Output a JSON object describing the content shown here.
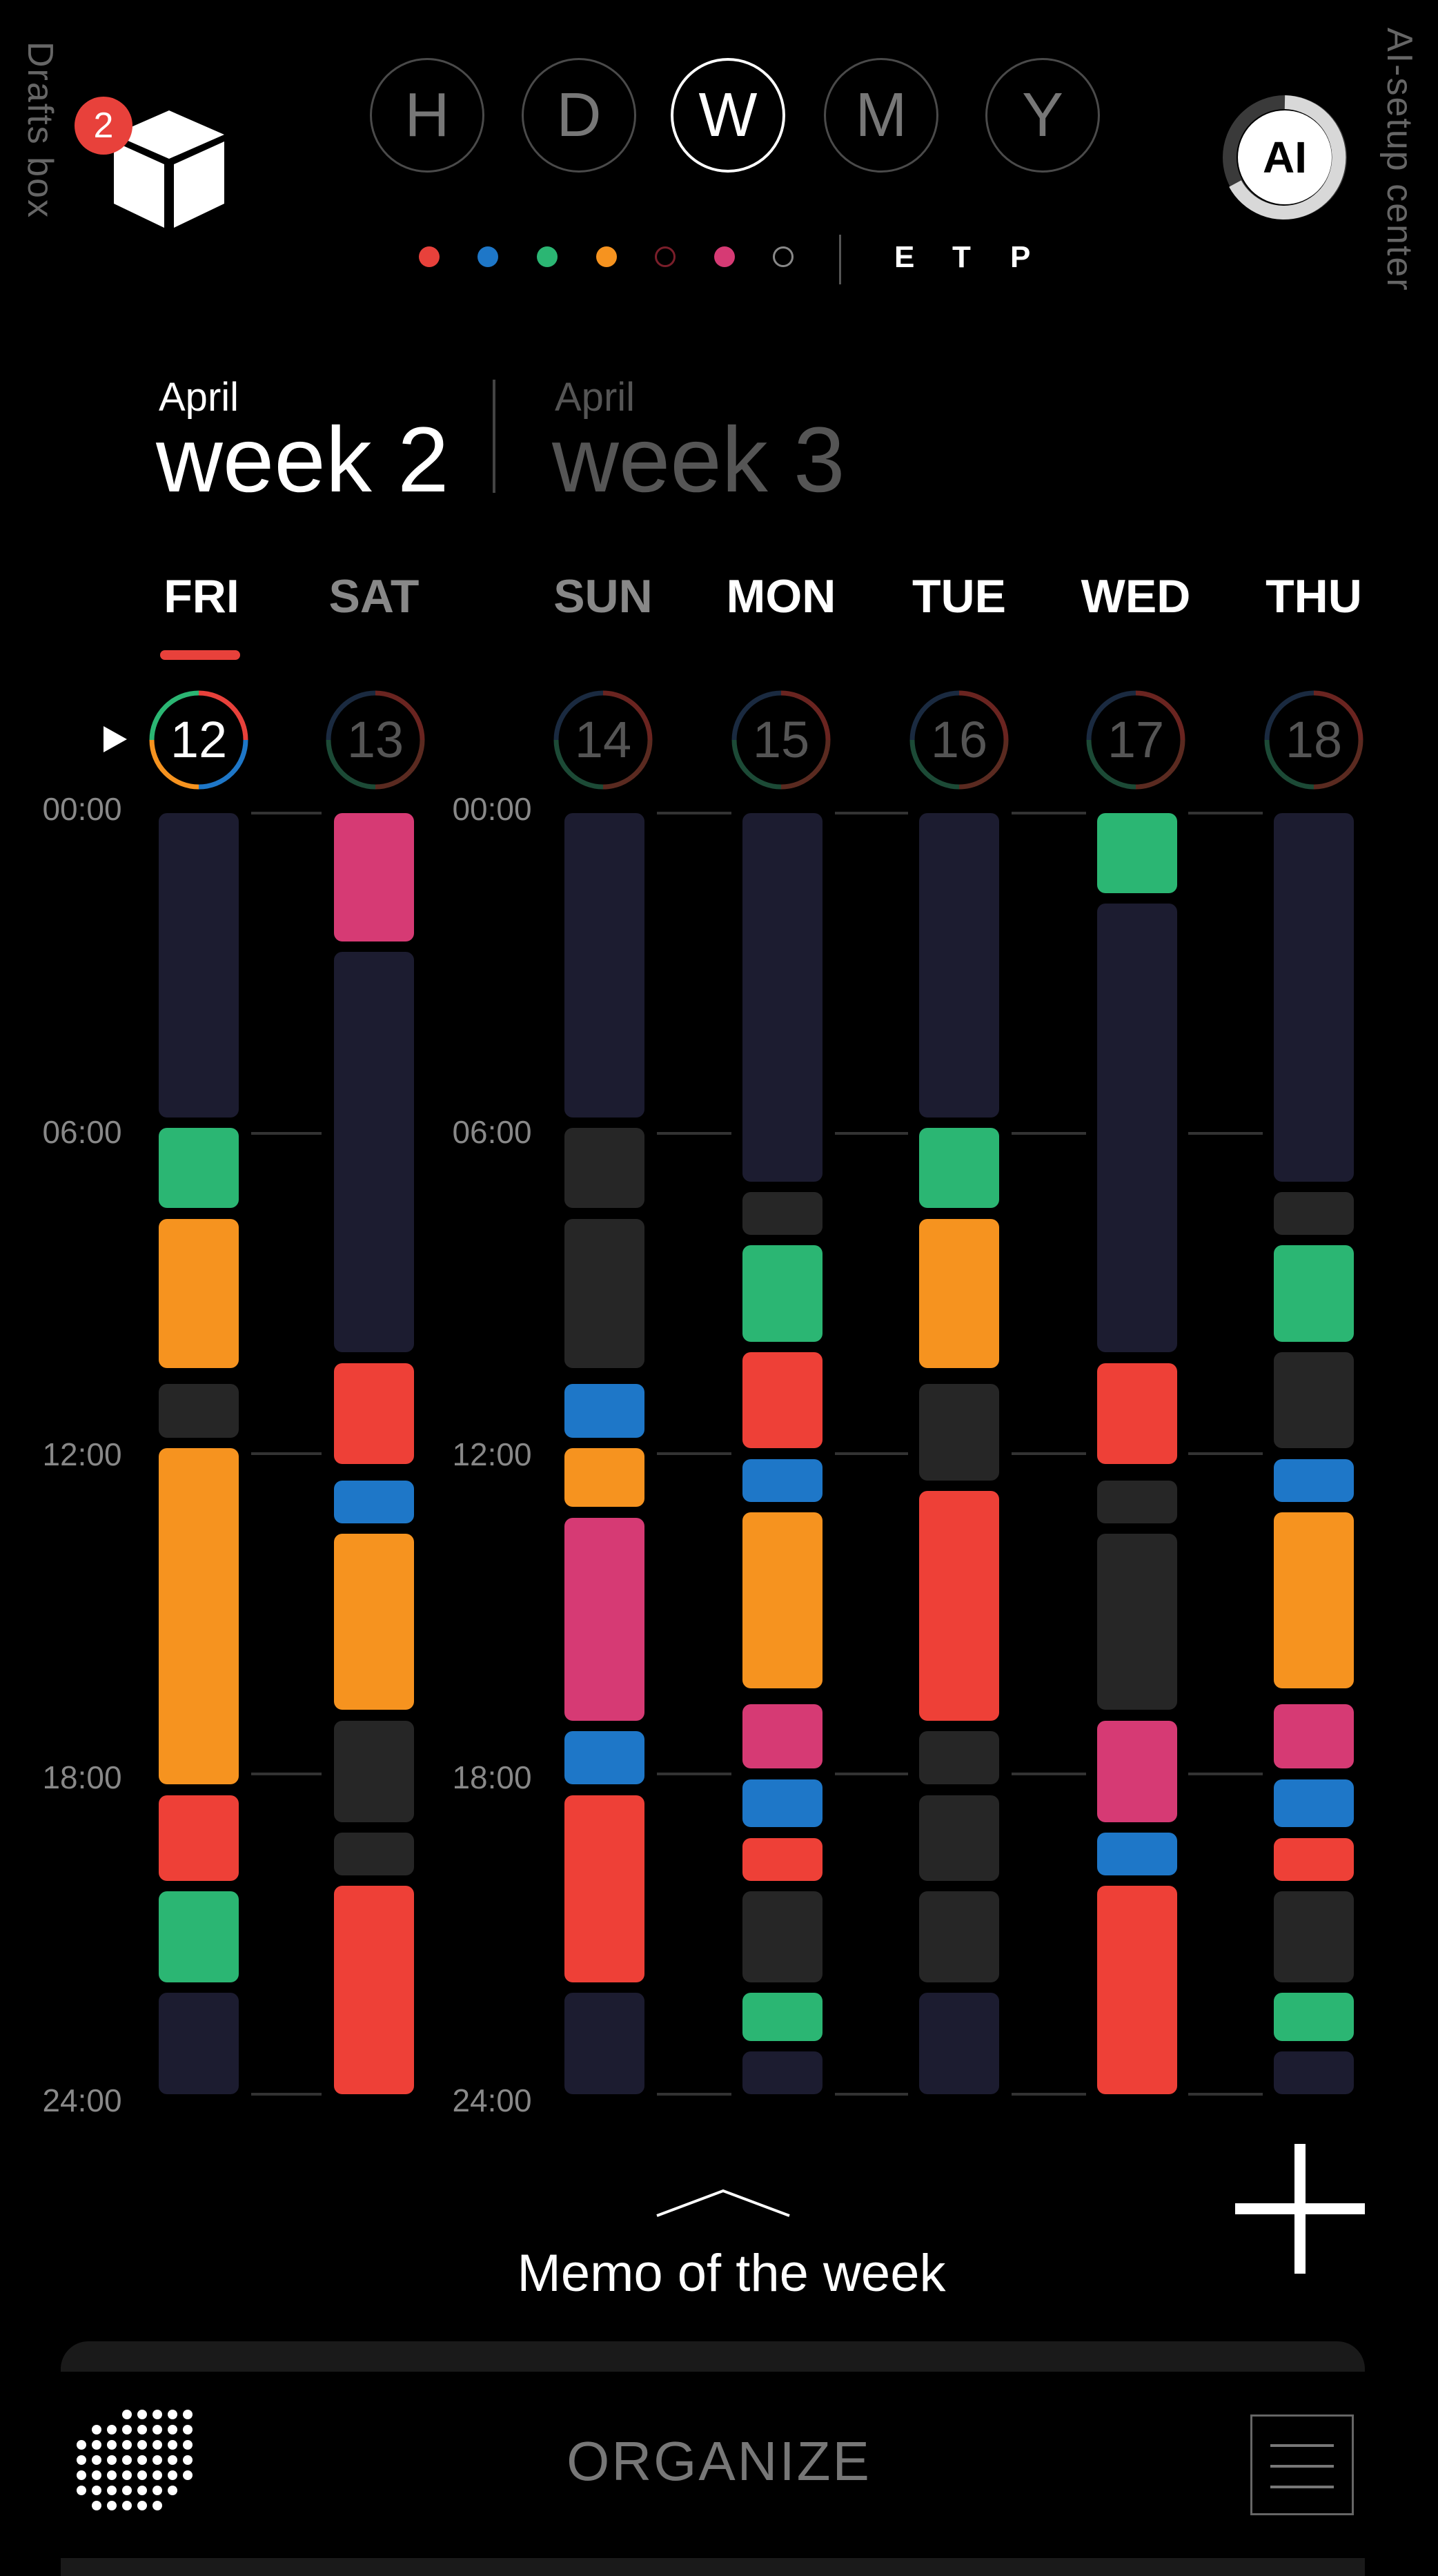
{
  "drafts": {
    "label": "Drafts box",
    "badge": "2"
  },
  "ai_center": {
    "label": "AI-setup center",
    "button": "AI"
  },
  "view_modes": [
    "H",
    "D",
    "W",
    "M",
    "Y"
  ],
  "active_view": "W",
  "color_filters": [
    "#e8413b",
    "#1e77c8",
    "#2bb673",
    "#f6931f",
    "#7a1e2a",
    "#d63a74",
    "#888888"
  ],
  "etp": [
    "E",
    "T",
    "P"
  ],
  "weeks": [
    {
      "month": "April",
      "label": "week 2"
    },
    {
      "month": "April",
      "label": "week 3"
    }
  ],
  "time_labels": [
    "00:00",
    "06:00",
    "12:00",
    "18:00",
    "24:00"
  ],
  "days": [
    {
      "name": "FRI",
      "num": "12"
    },
    {
      "name": "SAT",
      "num": "13"
    },
    {
      "name": "SUN",
      "num": "14"
    },
    {
      "name": "MON",
      "num": "15"
    },
    {
      "name": "TUE",
      "num": "16"
    },
    {
      "name": "WED",
      "num": "17"
    },
    {
      "name": "THU",
      "num": "18"
    }
  ],
  "colors": {
    "navy": "#1c1c30",
    "gray": "#262626",
    "green": "#2bb673",
    "orange": "#f6931f",
    "red": "#ee4037",
    "blue": "#1e77c8",
    "pink": "#d63a74"
  },
  "schedule": [
    [
      [
        0,
        5.7,
        "navy"
      ],
      [
        5.9,
        7.4,
        "green"
      ],
      [
        7.6,
        10.4,
        "orange"
      ],
      [
        10.7,
        11.7,
        "gray"
      ],
      [
        11.9,
        18.2,
        "orange"
      ],
      [
        18.4,
        20.0,
        "red"
      ],
      [
        20.2,
        21.9,
        "green"
      ],
      [
        22.1,
        24,
        "navy"
      ]
    ],
    [
      [
        0,
        2.4,
        "pink"
      ],
      [
        2.6,
        10.1,
        "navy"
      ],
      [
        10.3,
        12.2,
        "red"
      ],
      [
        12.5,
        13.3,
        "blue"
      ],
      [
        13.5,
        16.8,
        "orange"
      ],
      [
        17.0,
        18.9,
        "gray"
      ],
      [
        19.1,
        19.9,
        "gray"
      ],
      [
        20.1,
        24,
        "red"
      ]
    ],
    [
      [
        0,
        5.7,
        "navy"
      ],
      [
        5.9,
        7.4,
        "gray"
      ],
      [
        7.6,
        10.4,
        "gray"
      ],
      [
        10.7,
        11.7,
        "blue"
      ],
      [
        11.9,
        13.0,
        "orange"
      ],
      [
        13.2,
        17.0,
        "pink"
      ],
      [
        17.2,
        18.2,
        "blue"
      ],
      [
        18.4,
        21.9,
        "red"
      ],
      [
        22.1,
        24,
        "navy"
      ]
    ],
    [
      [
        0,
        6.9,
        "navy"
      ],
      [
        7.1,
        7.9,
        "gray"
      ],
      [
        8.1,
        9.9,
        "green"
      ],
      [
        10.1,
        11.9,
        "red"
      ],
      [
        12.1,
        12.9,
        "blue"
      ],
      [
        13.1,
        16.4,
        "orange"
      ],
      [
        16.7,
        17.9,
        "pink"
      ],
      [
        18.1,
        19.0,
        "blue"
      ],
      [
        19.2,
        20.0,
        "red"
      ],
      [
        20.2,
        21.9,
        "gray"
      ],
      [
        22.1,
        23.0,
        "green"
      ],
      [
        23.2,
        24,
        "navy"
      ]
    ],
    [
      [
        0,
        5.7,
        "navy"
      ],
      [
        5.9,
        7.4,
        "green"
      ],
      [
        7.6,
        10.4,
        "orange"
      ],
      [
        10.7,
        12.5,
        "gray"
      ],
      [
        12.7,
        17.0,
        "red"
      ],
      [
        17.2,
        18.2,
        "gray"
      ],
      [
        18.4,
        20.0,
        "gray"
      ],
      [
        20.2,
        21.9,
        "gray"
      ],
      [
        22.1,
        24,
        "navy"
      ]
    ],
    [
      [
        0,
        1.5,
        "green"
      ],
      [
        1.7,
        10.1,
        "navy"
      ],
      [
        10.3,
        12.2,
        "red"
      ],
      [
        12.5,
        13.3,
        "gray"
      ],
      [
        13.5,
        16.8,
        "gray"
      ],
      [
        17.0,
        18.9,
        "pink"
      ],
      [
        19.1,
        19.9,
        "blue"
      ],
      [
        20.1,
        24,
        "red"
      ]
    ],
    [
      [
        0,
        6.9,
        "navy"
      ],
      [
        7.1,
        7.9,
        "gray"
      ],
      [
        8.1,
        9.9,
        "green"
      ],
      [
        10.1,
        11.9,
        "gray"
      ],
      [
        12.1,
        12.9,
        "blue"
      ],
      [
        13.1,
        16.4,
        "orange"
      ],
      [
        16.7,
        17.9,
        "pink"
      ],
      [
        18.1,
        19.0,
        "blue"
      ],
      [
        19.2,
        20.0,
        "red"
      ],
      [
        20.2,
        21.9,
        "gray"
      ],
      [
        22.1,
        23.0,
        "green"
      ],
      [
        23.2,
        24,
        "navy"
      ]
    ]
  ],
  "memo": {
    "label": "Memo of the week"
  },
  "bottom": {
    "label": "ORGANIZE"
  }
}
